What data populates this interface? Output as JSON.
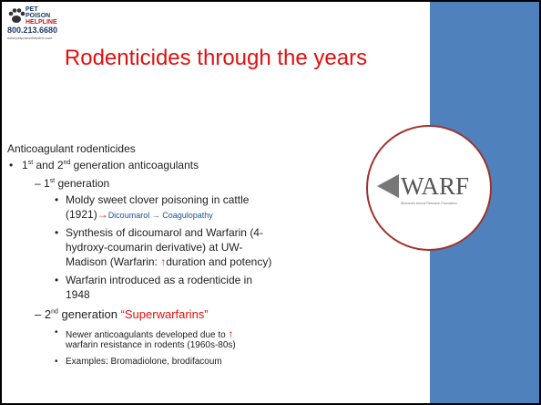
{
  "logo": {
    "pet": "Pet",
    "poison": "Poison",
    "helpline": "Helpline",
    "phone": "800.213.6680",
    "url": "www.petpoisonhelpline.com"
  },
  "title": "Rodenticides through the years",
  "heading": "Anticoagulant rodenticides",
  "lines": [
    [
      "1",
      "st",
      " and 2",
      "nd",
      " generation anticoagulants"
    ],
    [
      "1",
      "st",
      " generation"
    ],
    [
      "Moldy sweet clover poisoning in cattle"
    ],
    [
      "(1921)",
      "→",
      "Dicoumarol → Coagulopathy"
    ],
    [
      "Synthesis of dicoumarol and Warfarin (4-"
    ],
    [
      "hydroxy-coumarin derivative) at UW-"
    ],
    [
      "Madison (Warfarin: ",
      "↑",
      "duration and potency)"
    ],
    [
      "Warfarin introduced as a rodenticide in"
    ],
    [
      "1948"
    ],
    [
      "2",
      "nd",
      " generation ",
      "“Superwarfarins”"
    ],
    [
      "Newer anticoagulants developed due to ",
      "↑"
    ],
    [
      "warfarin resistance in rodents (1960s-80s)"
    ],
    [
      "Examples: Bromadiolone, brodifacoum"
    ]
  ],
  "warf": {
    "name": "WARF",
    "sub": "Wisconsin Alumni Research Foundation"
  }
}
